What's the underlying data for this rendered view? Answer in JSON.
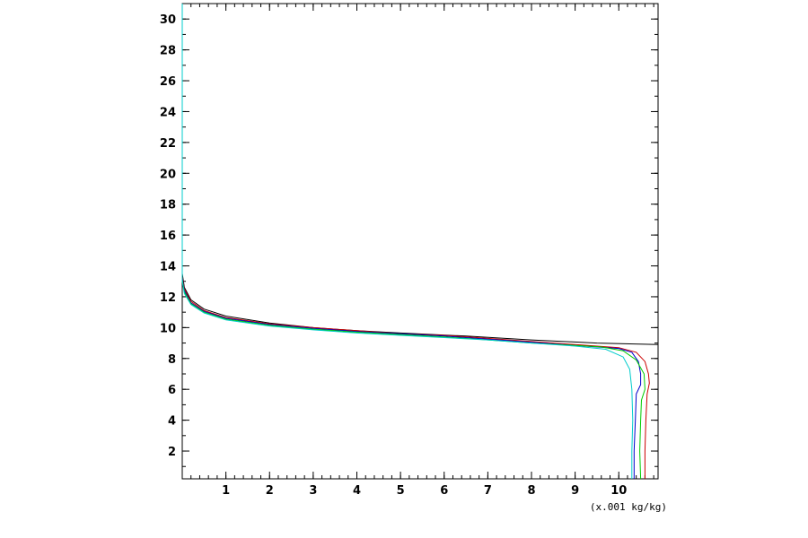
{
  "chart_data": {
    "type": "line",
    "title": "",
    "xlabel": "",
    "ylabel": "",
    "x_unit_label": "(x.001 kg/kg)",
    "xlim": [
      0,
      10.9
    ],
    "ylim": [
      0.2,
      31
    ],
    "x_ticks": [
      1,
      2,
      3,
      4,
      5,
      6,
      7,
      8,
      9,
      10
    ],
    "y_ticks": [
      2,
      4,
      6,
      8,
      10,
      12,
      14,
      16,
      18,
      20,
      22,
      24,
      26,
      28,
      30
    ],
    "grid": false,
    "legend": "none",
    "series": [
      {
        "color": "#000000",
        "points": [
          [
            10.9,
            8.9
          ],
          [
            9.5,
            9.0
          ],
          [
            8.0,
            9.2
          ],
          [
            6.5,
            9.45
          ],
          [
            5.0,
            9.65
          ],
          [
            4.0,
            9.8
          ],
          [
            3.0,
            10.0
          ],
          [
            2.0,
            10.3
          ],
          [
            1.0,
            10.75
          ],
          [
            0.5,
            11.2
          ],
          [
            0.2,
            11.8
          ],
          [
            0.05,
            12.6
          ],
          [
            0.0,
            13.5
          ],
          [
            0.0,
            31.0
          ]
        ]
      },
      {
        "color": "#cc0000",
        "points": [
          [
            10.6,
            0.2
          ],
          [
            10.6,
            2.0
          ],
          [
            10.62,
            4.0
          ],
          [
            10.65,
            5.7
          ],
          [
            10.7,
            6.4
          ],
          [
            10.68,
            7.0
          ],
          [
            10.6,
            7.8
          ],
          [
            10.4,
            8.4
          ],
          [
            10.0,
            8.7
          ],
          [
            9.0,
            8.9
          ],
          [
            8.0,
            9.1
          ],
          [
            7.0,
            9.3
          ],
          [
            6.0,
            9.5
          ],
          [
            5.0,
            9.6
          ],
          [
            4.0,
            9.8
          ],
          [
            3.0,
            10.0
          ],
          [
            2.0,
            10.25
          ],
          [
            1.0,
            10.65
          ],
          [
            0.5,
            11.1
          ],
          [
            0.2,
            11.7
          ],
          [
            0.05,
            12.5
          ],
          [
            0.0,
            13.3
          ],
          [
            0.0,
            31.0
          ]
        ]
      },
      {
        "color": "#0000cc",
        "points": [
          [
            10.35,
            0.2
          ],
          [
            10.35,
            2.0
          ],
          [
            10.38,
            4.0
          ],
          [
            10.4,
            5.7
          ],
          [
            10.5,
            6.3
          ],
          [
            10.5,
            7.0
          ],
          [
            10.45,
            7.8
          ],
          [
            10.3,
            8.4
          ],
          [
            10.0,
            8.65
          ],
          [
            9.0,
            8.85
          ],
          [
            8.0,
            9.05
          ],
          [
            7.0,
            9.25
          ],
          [
            6.0,
            9.45
          ],
          [
            5.0,
            9.6
          ],
          [
            4.0,
            9.75
          ],
          [
            3.0,
            9.95
          ],
          [
            2.0,
            10.2
          ],
          [
            1.0,
            10.6
          ],
          [
            0.5,
            11.05
          ],
          [
            0.2,
            11.6
          ],
          [
            0.05,
            12.4
          ],
          [
            0.0,
            13.2
          ],
          [
            0.0,
            31.0
          ]
        ]
      },
      {
        "color": "#00cc00",
        "points": [
          [
            10.5,
            0.2
          ],
          [
            10.48,
            2.0
          ],
          [
            10.5,
            4.0
          ],
          [
            10.52,
            5.3
          ],
          [
            10.6,
            6.0
          ],
          [
            10.58,
            7.0
          ],
          [
            10.4,
            7.9
          ],
          [
            10.1,
            8.5
          ],
          [
            9.6,
            8.75
          ],
          [
            9.0,
            8.85
          ],
          [
            8.0,
            9.0
          ],
          [
            7.0,
            9.2
          ],
          [
            6.0,
            9.4
          ],
          [
            5.0,
            9.55
          ],
          [
            4.0,
            9.7
          ],
          [
            3.0,
            9.9
          ],
          [
            2.0,
            10.15
          ],
          [
            1.0,
            10.55
          ],
          [
            0.5,
            11.0
          ],
          [
            0.2,
            11.55
          ],
          [
            0.05,
            12.3
          ],
          [
            0.0,
            13.1
          ],
          [
            0.0,
            31.0
          ]
        ]
      },
      {
        "color": "#00cccc",
        "points": [
          [
            10.3,
            0.2
          ],
          [
            10.3,
            2.0
          ],
          [
            10.32,
            4.0
          ],
          [
            10.3,
            6.0
          ],
          [
            10.25,
            7.3
          ],
          [
            10.1,
            8.1
          ],
          [
            9.7,
            8.6
          ],
          [
            9.0,
            8.8
          ],
          [
            8.0,
            9.0
          ],
          [
            7.0,
            9.2
          ],
          [
            6.0,
            9.35
          ],
          [
            5.0,
            9.5
          ],
          [
            4.0,
            9.65
          ],
          [
            3.0,
            9.85
          ],
          [
            2.0,
            10.1
          ],
          [
            1.0,
            10.5
          ],
          [
            0.5,
            10.95
          ],
          [
            0.2,
            11.5
          ],
          [
            0.05,
            12.2
          ],
          [
            0.0,
            13.0
          ],
          [
            0.0,
            31.0
          ]
        ]
      }
    ]
  }
}
